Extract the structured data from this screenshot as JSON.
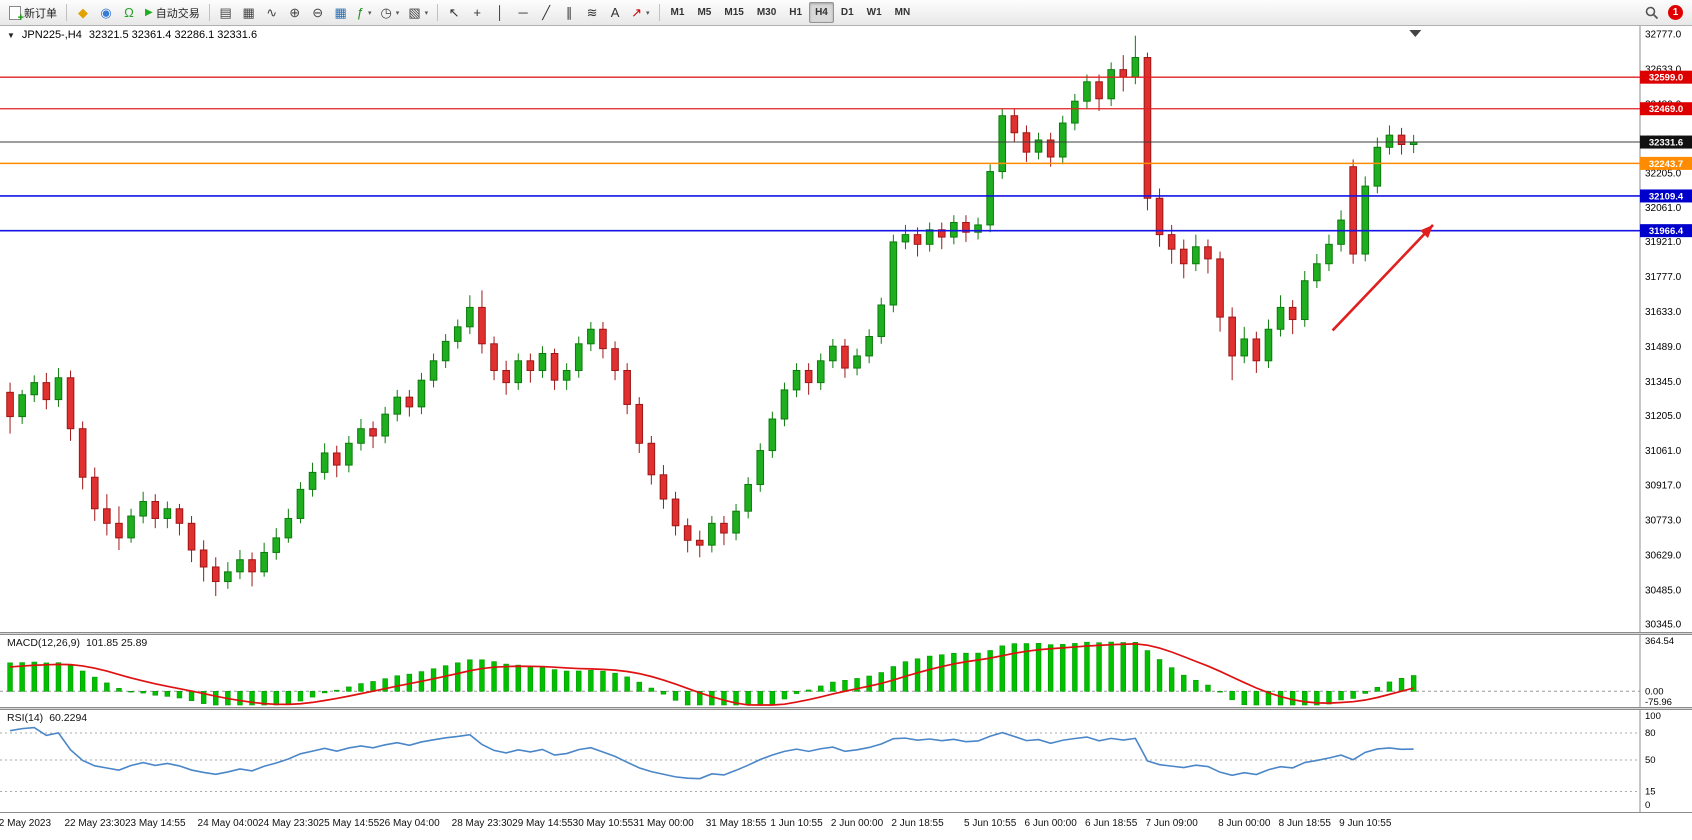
{
  "toolbar": {
    "new_order_label": "新订单",
    "autotrading_label": "自动交易",
    "notification_count": "1",
    "timeframes": [
      "M1",
      "M5",
      "M15",
      "M30",
      "H1",
      "H4",
      "D1",
      "W1",
      "MN"
    ],
    "active_timeframe": "H4",
    "icon_buttons_left": [
      {
        "name": "metaeditor-icon",
        "glyph": "◆",
        "color": "#e0a300"
      },
      {
        "name": "market-icon",
        "glyph": "◉",
        "color": "#3a7bd5"
      },
      {
        "name": "signals-icon",
        "glyph": "Ω",
        "color": "#27a327"
      }
    ],
    "icon_buttons_chart": [
      {
        "name": "bar-chart-icon",
        "glyph": "▤",
        "color": "#444444"
      },
      {
        "name": "candlestick-chart-icon",
        "glyph": "▦",
        "color": "#444444"
      },
      {
        "name": "line-chart-icon",
        "glyph": "∿",
        "color": "#444444"
      },
      {
        "name": "zoom-in-icon",
        "glyph": "⊕",
        "color": "#444444"
      },
      {
        "name": "zoom-out-icon",
        "glyph": "⊖",
        "color": "#444444"
      },
      {
        "name": "tile-windows-icon",
        "glyph": "▦",
        "color": "#2a6fb0"
      },
      {
        "name": "indicators-icon",
        "glyph": "ƒ",
        "color": "#1f8f1f",
        "dropdown": true
      },
      {
        "name": "periods-icon",
        "glyph": "◷",
        "color": "#444444",
        "dropdown": true
      },
      {
        "name": "templates-icon",
        "glyph": "▧",
        "color": "#444444",
        "dropdown": true
      }
    ],
    "icon_buttons_tools": [
      {
        "name": "cursor-icon",
        "glyph": "↖",
        "color": "#333333"
      },
      {
        "name": "crosshair-icon",
        "glyph": "+",
        "color": "#333333"
      },
      {
        "name": "vertical-line-icon",
        "glyph": "│",
        "color": "#333333"
      },
      {
        "name": "horizontal-line-icon",
        "glyph": "─",
        "color": "#333333"
      },
      {
        "name": "trendline-icon",
        "glyph": "╱",
        "color": "#333333"
      },
      {
        "name": "equidistant-channel-icon",
        "glyph": "∥",
        "color": "#333333"
      },
      {
        "name": "fibonacci-icon",
        "glyph": "≋",
        "color": "#333333"
      },
      {
        "name": "text-icon",
        "glyph": "A",
        "color": "#333333"
      },
      {
        "name": "arrows-icon",
        "glyph": "↗",
        "color": "#cc0000",
        "dropdown": true
      }
    ]
  },
  "chart": {
    "symbol_period": "JPN225-,H4",
    "ohlc_text": "32321.5 32361.4 32286.1 32331.6"
  },
  "chart_data": {
    "type": "candlestick",
    "symbol": "JPN225-",
    "timeframe": "H4",
    "current": {
      "open": 32321.5,
      "high": 32361.4,
      "low": 32286.1,
      "close": 32331.6
    },
    "price_top": 32777,
    "price_bottom": 30345,
    "price_axis": [
      32777,
      32633,
      32489,
      32345,
      32205,
      32061,
      31921,
      31777,
      31633,
      31489,
      31345,
      31205,
      31061,
      30917,
      30773,
      30629,
      30485,
      30345
    ],
    "colors": {
      "up": "#1fae1f",
      "up_border": "#0c7c0c",
      "down": "#e03030",
      "down_border": "#a01616",
      "hist": "#00c000",
      "hist_border": "#009a00",
      "signal": "#e01010",
      "rsi": "#4a86c8"
    },
    "hlines": [
      {
        "label": "32599.0",
        "value": 32599.0,
        "color": "#e02020",
        "badge": "#dd0000",
        "width": 1.3
      },
      {
        "label": "32469.0",
        "value": 32469.0,
        "color": "#e02020",
        "badge": "#dd0000",
        "width": 1.3
      },
      {
        "label": "32331.6",
        "value": 32331.6,
        "color": "#3c3c3c",
        "badge": "#111111",
        "width": 1.0,
        "kind": "current-price"
      },
      {
        "label": "32243.7",
        "value": 32243.7,
        "color": "#ff8c00",
        "badge": "#ff8c00",
        "width": 1.4
      },
      {
        "label": "32109.4",
        "value": 32109.4,
        "color": "#1414e6",
        "badge": "#0000cd",
        "width": 1.6
      },
      {
        "label": "31966.4",
        "value": 31966.4,
        "color": "#1414e6",
        "badge": "#0000cd",
        "width": 1.6
      }
    ],
    "arrow": {
      "i1": 109.3,
      "p1": 31555,
      "i2": 117.6,
      "p2": 31990,
      "color": "#e02020"
    },
    "candles": [
      [
        31300,
        31340,
        31130,
        31200
      ],
      [
        31200,
        31310,
        31170,
        31290
      ],
      [
        31290,
        31370,
        31260,
        31340
      ],
      [
        31340,
        31380,
        31230,
        31270
      ],
      [
        31270,
        31400,
        31240,
        31360
      ],
      [
        31360,
        31390,
        31100,
        31150
      ],
      [
        31150,
        31180,
        30900,
        30950
      ],
      [
        30950,
        30990,
        30770,
        30820
      ],
      [
        30820,
        30880,
        30710,
        30760
      ],
      [
        30760,
        30830,
        30650,
        30700
      ],
      [
        30700,
        30820,
        30680,
        30790
      ],
      [
        30790,
        30890,
        30760,
        30850
      ],
      [
        30850,
        30880,
        30740,
        30780
      ],
      [
        30780,
        30850,
        30740,
        30820
      ],
      [
        30820,
        30840,
        30710,
        30760
      ],
      [
        30760,
        30790,
        30600,
        30650
      ],
      [
        30650,
        30690,
        30520,
        30580
      ],
      [
        30580,
        30620,
        30460,
        30520
      ],
      [
        30520,
        30600,
        30490,
        30560
      ],
      [
        30560,
        30650,
        30530,
        30610
      ],
      [
        30610,
        30640,
        30500,
        30560
      ],
      [
        30560,
        30680,
        30540,
        30640
      ],
      [
        30640,
        30740,
        30610,
        30700
      ],
      [
        30700,
        30820,
        30680,
        30780
      ],
      [
        30780,
        30930,
        30760,
        30900
      ],
      [
        30900,
        31010,
        30870,
        30970
      ],
      [
        30970,
        31090,
        30940,
        31050
      ],
      [
        31050,
        31080,
        30950,
        31000
      ],
      [
        31000,
        31120,
        30970,
        31090
      ],
      [
        31090,
        31190,
        31060,
        31150
      ],
      [
        31150,
        31180,
        31070,
        31120
      ],
      [
        31120,
        31240,
        31090,
        31210
      ],
      [
        31210,
        31310,
        31180,
        31280
      ],
      [
        31280,
        31310,
        31200,
        31240
      ],
      [
        31240,
        31380,
        31210,
        31350
      ],
      [
        31350,
        31460,
        31320,
        31430
      ],
      [
        31430,
        31540,
        31400,
        31510
      ],
      [
        31510,
        31600,
        31480,
        31570
      ],
      [
        31570,
        31700,
        31540,
        31650
      ],
      [
        31650,
        31720,
        31460,
        31500
      ],
      [
        31500,
        31530,
        31350,
        31390
      ],
      [
        31390,
        31430,
        31290,
        31340
      ],
      [
        31340,
        31460,
        31310,
        31430
      ],
      [
        31430,
        31460,
        31340,
        31390
      ],
      [
        31390,
        31490,
        31360,
        31460
      ],
      [
        31460,
        31480,
        31310,
        31350
      ],
      [
        31350,
        31420,
        31310,
        31390
      ],
      [
        31390,
        31530,
        31360,
        31500
      ],
      [
        31500,
        31590,
        31470,
        31560
      ],
      [
        31560,
        31590,
        31440,
        31480
      ],
      [
        31480,
        31510,
        31350,
        31390
      ],
      [
        31390,
        31420,
        31210,
        31250
      ],
      [
        31250,
        31280,
        31050,
        31090
      ],
      [
        31090,
        31120,
        30920,
        30960
      ],
      [
        30960,
        31000,
        30820,
        30860
      ],
      [
        30860,
        30890,
        30710,
        30750
      ],
      [
        30750,
        30780,
        30640,
        30690
      ],
      [
        30690,
        30730,
        30620,
        30670
      ],
      [
        30670,
        30790,
        30640,
        30760
      ],
      [
        30760,
        30790,
        30670,
        30720
      ],
      [
        30720,
        30840,
        30690,
        30810
      ],
      [
        30810,
        30950,
        30780,
        30920
      ],
      [
        30920,
        31090,
        30890,
        31060
      ],
      [
        31060,
        31220,
        31030,
        31190
      ],
      [
        31190,
        31340,
        31160,
        31310
      ],
      [
        31310,
        31420,
        31280,
        31390
      ],
      [
        31390,
        31420,
        31290,
        31340
      ],
      [
        31340,
        31460,
        31310,
        31430
      ],
      [
        31430,
        31520,
        31400,
        31490
      ],
      [
        31490,
        31520,
        31360,
        31400
      ],
      [
        31400,
        31480,
        31370,
        31450
      ],
      [
        31450,
        31560,
        31420,
        31530
      ],
      [
        31530,
        31690,
        31500,
        31660
      ],
      [
        31660,
        31950,
        31630,
        31920
      ],
      [
        31920,
        31990,
        31890,
        31950
      ],
      [
        31950,
        31980,
        31860,
        31910
      ],
      [
        31910,
        32000,
        31880,
        31970
      ],
      [
        31970,
        32000,
        31890,
        31940
      ],
      [
        31940,
        32030,
        31910,
        32000
      ],
      [
        32000,
        32030,
        31920,
        31960
      ],
      [
        31960,
        32020,
        31930,
        31990
      ],
      [
        31990,
        32240,
        31960,
        32210
      ],
      [
        32210,
        32470,
        32180,
        32440
      ],
      [
        32440,
        32470,
        32330,
        32370
      ],
      [
        32370,
        32400,
        32250,
        32290
      ],
      [
        32290,
        32370,
        32260,
        32340
      ],
      [
        32340,
        32370,
        32230,
        32270
      ],
      [
        32270,
        32440,
        32240,
        32410
      ],
      [
        32410,
        32530,
        32380,
        32500
      ],
      [
        32500,
        32610,
        32470,
        32580
      ],
      [
        32580,
        32610,
        32460,
        32510
      ],
      [
        32510,
        32660,
        32480,
        32630
      ],
      [
        32630,
        32690,
        32540,
        32600
      ],
      [
        32600,
        32770,
        32570,
        32680
      ],
      [
        32680,
        32700,
        32050,
        32100
      ],
      [
        32100,
        32140,
        31900,
        31950
      ],
      [
        31950,
        31990,
        31830,
        31890
      ],
      [
        31890,
        31930,
        31770,
        31830
      ],
      [
        31830,
        31950,
        31800,
        31900
      ],
      [
        31900,
        31930,
        31790,
        31850
      ],
      [
        31850,
        31880,
        31550,
        31610
      ],
      [
        31610,
        31650,
        31350,
        31450
      ],
      [
        31450,
        31570,
        31420,
        31520
      ],
      [
        31520,
        31550,
        31380,
        31430
      ],
      [
        31430,
        31600,
        31400,
        31560
      ],
      [
        31560,
        31700,
        31530,
        31650
      ],
      [
        31650,
        31680,
        31540,
        31600
      ],
      [
        31600,
        31800,
        31570,
        31760
      ],
      [
        31760,
        31870,
        31730,
        31830
      ],
      [
        31830,
        31950,
        31800,
        31910
      ],
      [
        31910,
        32050,
        31880,
        32010
      ],
      [
        32230,
        32260,
        31830,
        31870
      ],
      [
        31870,
        32190,
        31840,
        32150
      ],
      [
        32150,
        32350,
        32120,
        32310
      ],
      [
        32310,
        32400,
        32280,
        32360
      ],
      [
        32360,
        32390,
        32280,
        32321.5
      ],
      [
        32321.5,
        32361.4,
        32286.1,
        32331.6
      ]
    ],
    "time_labels": [
      "22 May 2023",
      "22 May 23:30",
      "23 May 14:55",
      "24 May 04:00",
      "24 May 23:30",
      "25 May 14:55",
      "26 May 04:00",
      "28 May 23:30",
      "29 May 14:55",
      "30 May 10:55",
      "31 May 00:00",
      "31 May 18:55",
      "1 Jun 10:55",
      "2 Jun 00:00",
      "2 Jun 18:55",
      "5 Jun 10:55",
      "6 Jun 00:00",
      "6 Jun 18:55",
      "7 Jun 09:00",
      "8 Jun 00:00",
      "8 Jun 18:55",
      "9 Jun 10:55"
    ],
    "macd": {
      "label": "MACD(12,26,9)",
      "values_text": "101.85 25.89",
      "axis": [
        "364.54",
        "0.00",
        "-75.96"
      ],
      "max": 364.54,
      "min": -75.96
    },
    "rsi": {
      "label": "RSI(14)",
      "value_text": "60.2294",
      "axis": [
        100,
        80,
        50,
        15,
        0
      ],
      "levels": [
        80,
        50,
        15
      ]
    }
  }
}
